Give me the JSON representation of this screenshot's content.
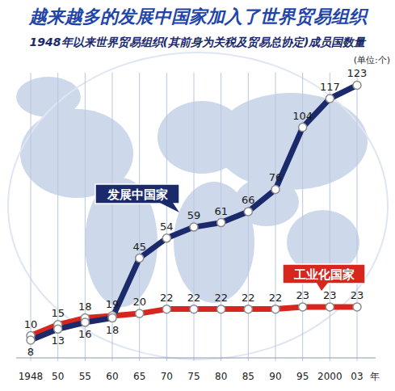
{
  "chart_data": {
    "type": "line",
    "title": "越来越多的发展中国家加入了世界贸易组织",
    "subtitle": "1948年以来世界贸易组织(其前身为关税及贸易总协定)成员国数量",
    "y_label": "(单位:个)",
    "x_label": "年",
    "categories": [
      "1948",
      "50",
      "55",
      "60",
      "65",
      "70",
      "75",
      "80",
      "85",
      "90",
      "95",
      "2000",
      "03"
    ],
    "series": [
      {
        "name": "发展中国家",
        "color": "#1b2a6b",
        "values": [
          8,
          13,
          16,
          18,
          45,
          54,
          59,
          61,
          66,
          76,
          104,
          117,
          123
        ]
      },
      {
        "name": "工业化国家",
        "color": "#d7261e",
        "values": [
          10,
          15,
          18,
          19,
          20,
          22,
          22,
          22,
          22,
          22,
          23,
          23,
          23
        ]
      }
    ],
    "ylim": [
      0,
      125
    ],
    "grid": true,
    "data_labels": true,
    "tick_labels": "x",
    "marker": "circle"
  }
}
